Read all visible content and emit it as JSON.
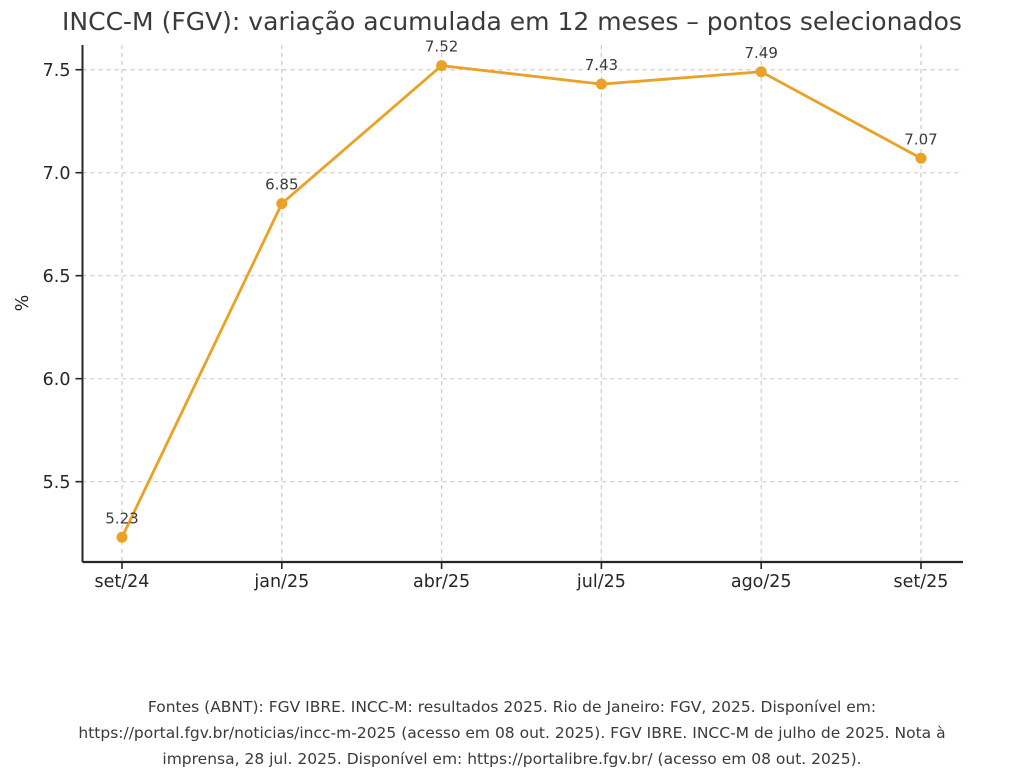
{
  "title": "INCC-M (FGV): variação acumulada em 12 meses – pontos selecionados",
  "chart_data": {
    "type": "line",
    "categories": [
      "set/24",
      "jan/25",
      "abr/25",
      "jul/25",
      "ago/25",
      "set/25"
    ],
    "values": [
      5.23,
      6.85,
      7.52,
      7.43,
      7.49,
      7.07
    ],
    "point_labels": [
      "5.23",
      "6.85",
      "7.52",
      "7.43",
      "7.49",
      "7.07"
    ],
    "title": "INCC-M (FGV): variação acumulada em 12 meses – pontos selecionados",
    "xlabel": "",
    "ylabel": "%",
    "yticks": [
      5.5,
      6.0,
      6.5,
      7.0,
      7.5
    ],
    "ytick_labels": [
      "5.5",
      "6.0",
      "6.5",
      "7.0",
      "7.5"
    ],
    "ylim": [
      5.11,
      7.62
    ],
    "grid": true,
    "grid_style": "dashed",
    "legend": "none",
    "colors": {
      "line": "#e9a227",
      "marker": "#e9a227",
      "grid": "#cccccc",
      "spine": "#262626",
      "tick_label": "#262626",
      "value_label": "#3a3a3a",
      "title": "#3a3a3a"
    }
  },
  "footer": {
    "lines": [
      "Fontes (ABNT): FGV IBRE. INCC-M: resultados 2025. Rio de Janeiro: FGV, 2025. Disponível em:",
      "https://portal.fgv.br/noticias/incc-m-2025 (acesso em 08 out. 2025). FGV IBRE. INCC-M de julho de 2025. Nota à",
      "imprensa, 28 jul. 2025. Disponível em: https://portalibre.fgv.br/ (acesso em 08 out. 2025)."
    ]
  }
}
